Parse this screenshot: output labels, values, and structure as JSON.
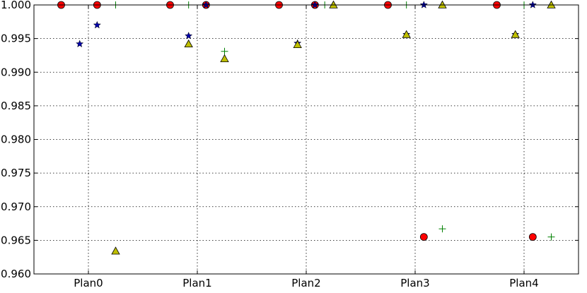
{
  "chart_data": {
    "type": "scatter",
    "categories": [
      "Plan0",
      "Plan1",
      "Plan2",
      "Plan3",
      "Plan4"
    ],
    "ylim": [
      0.96,
      1.0
    ],
    "yticks": [
      "0.960",
      "0.965",
      "0.970",
      "0.975",
      "0.980",
      "0.985",
      "0.990",
      "0.995",
      "1.000"
    ],
    "ytick_values": [
      0.96,
      0.965,
      0.97,
      0.975,
      0.98,
      0.985,
      0.99,
      0.995,
      1.0
    ],
    "grid": true,
    "series": [
      {
        "marker": "circle",
        "color": "#ff0000",
        "points": [
          {
            "x": -0.25,
            "y": 1.0
          },
          {
            "x": 0.08,
            "y": 1.0
          },
          {
            "x": 0.75,
            "y": 1.0
          },
          {
            "x": 1.08,
            "y": 1.0
          },
          {
            "x": 1.75,
            "y": 1.0
          },
          {
            "x": 2.08,
            "y": 1.0
          },
          {
            "x": 2.75,
            "y": 1.0
          },
          {
            "x": 3.08,
            "y": 0.9655
          },
          {
            "x": 3.75,
            "y": 1.0
          },
          {
            "x": 4.08,
            "y": 0.9655
          }
        ]
      },
      {
        "marker": "star",
        "color": "#0000aa",
        "points": [
          {
            "x": -0.08,
            "y": 0.9942
          },
          {
            "x": 0.08,
            "y": 0.997
          },
          {
            "x": 0.92,
            "y": 0.9954
          },
          {
            "x": 1.08,
            "y": 1.0
          },
          {
            "x": 1.92,
            "y": 0.9943
          },
          {
            "x": 2.08,
            "y": 1.0
          },
          {
            "x": 2.92,
            "y": 0.9956
          },
          {
            "x": 3.08,
            "y": 1.0
          },
          {
            "x": 3.92,
            "y": 0.9956
          },
          {
            "x": 4.08,
            "y": 1.0
          }
        ]
      },
      {
        "marker": "plus",
        "color": "#008000",
        "points": [
          {
            "x": 0.25,
            "y": 1.0
          },
          {
            "x": 0.92,
            "y": 1.0
          },
          {
            "x": 1.25,
            "y": 0.9931
          },
          {
            "x": 2.17,
            "y": 1.0
          },
          {
            "x": 2.92,
            "y": 1.0
          },
          {
            "x": 3.25,
            "y": 0.9667
          },
          {
            "x": 4.0,
            "y": 1.0
          },
          {
            "x": 4.25,
            "y": 0.9655
          }
        ]
      },
      {
        "marker": "triangle",
        "color": "#bfbf00",
        "points": [
          {
            "x": 0.25,
            "y": 0.9634
          },
          {
            "x": 0.92,
            "y": 0.9942
          },
          {
            "x": 1.25,
            "y": 0.992
          },
          {
            "x": 1.92,
            "y": 0.9941
          },
          {
            "x": 2.25,
            "y": 1.0
          },
          {
            "x": 2.92,
            "y": 0.9956
          },
          {
            "x": 3.25,
            "y": 1.0
          },
          {
            "x": 3.92,
            "y": 0.9956
          },
          {
            "x": 4.25,
            "y": 1.0
          }
        ]
      }
    ]
  }
}
